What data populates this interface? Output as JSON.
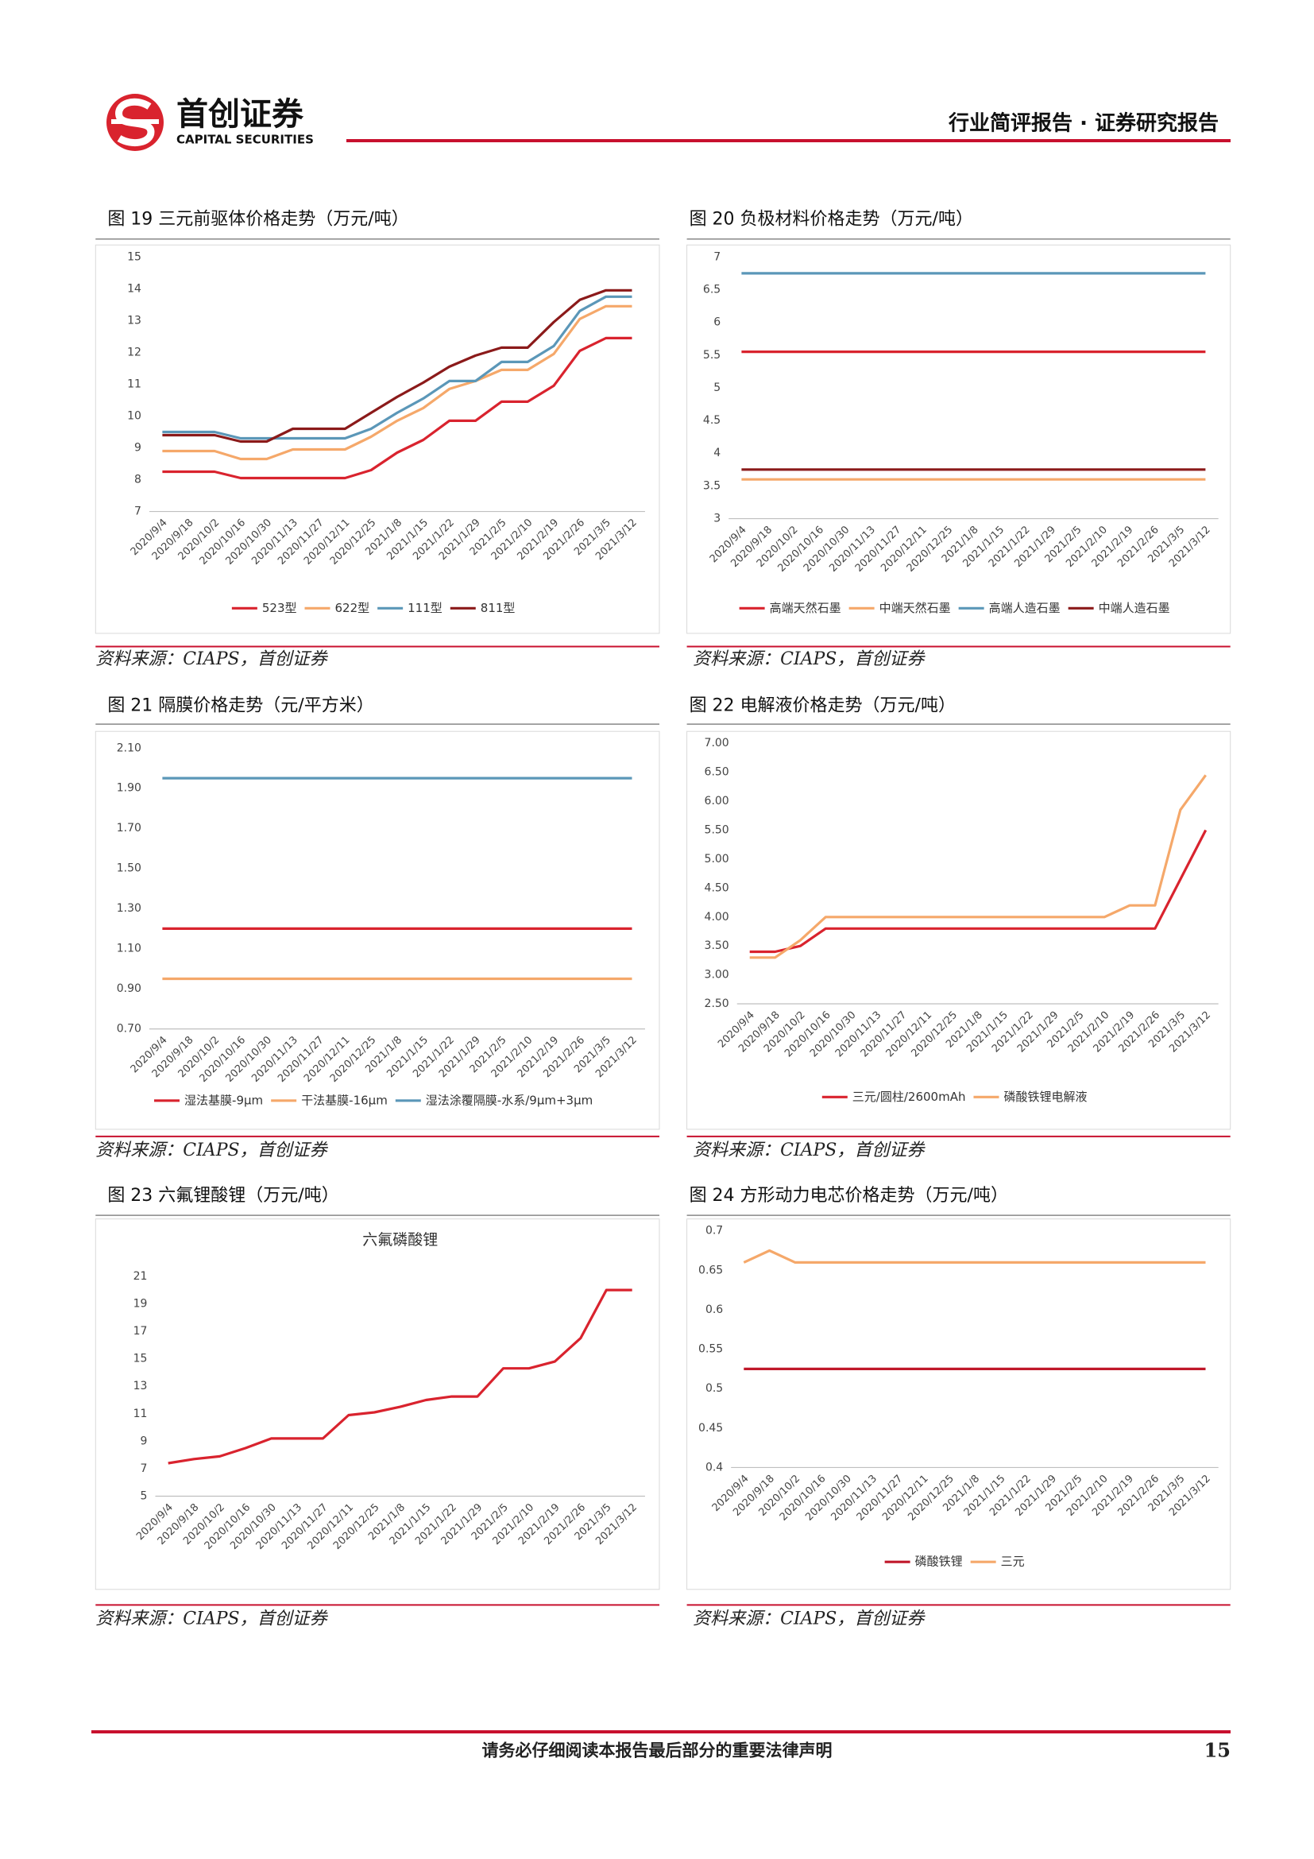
{
  "header": {
    "brand": "首创证券",
    "brand_en": "CAPITAL SECURITIES",
    "report_type": "行业简评报告 · 证券研究报告"
  },
  "chart_data": [
    {
      "type": "line",
      "title": "图 19 三元前驱体价格走势（万元/吨）",
      "source": "资料来源：CIAPS，首创证券",
      "categories": [
        "2020/9/4",
        "2020/9/18",
        "2020/10/2",
        "2020/10/16",
        "2020/10/30",
        "2020/11/13",
        "2020/11/27",
        "2020/12/11",
        "2020/12/25",
        "2021/1/8",
        "2021/1/15",
        "2021/1/22",
        "2021/1/29",
        "2021/2/5",
        "2021/2/10",
        "2021/2/19",
        "2021/2/26",
        "2021/3/5",
        "2021/3/12"
      ],
      "series": [
        {
          "name": "523型",
          "color": "#d9232e",
          "values": [
            8.25,
            8.25,
            8.25,
            8.05,
            8.05,
            8.05,
            8.05,
            8.05,
            8.3,
            8.85,
            9.25,
            9.85,
            9.85,
            10.45,
            10.45,
            10.95,
            12.05,
            12.45,
            12.45
          ]
        },
        {
          "name": "622型",
          "color": "#f5a86a",
          "values": [
            8.9,
            8.9,
            8.9,
            8.65,
            8.65,
            8.95,
            8.95,
            8.95,
            9.35,
            9.85,
            10.25,
            10.85,
            11.1,
            11.45,
            11.45,
            11.95,
            13.05,
            13.45,
            13.45
          ]
        },
        {
          "name": "111型",
          "color": "#5b97b8",
          "values": [
            9.5,
            9.5,
            9.5,
            9.3,
            9.3,
            9.3,
            9.3,
            9.3,
            9.6,
            10.1,
            10.55,
            11.1,
            11.1,
            11.7,
            11.7,
            12.2,
            13.3,
            13.75,
            13.75
          ]
        },
        {
          "name": "811型",
          "color": "#8b1a1a",
          "values": [
            9.4,
            9.4,
            9.4,
            9.2,
            9.2,
            9.6,
            9.6,
            9.6,
            10.1,
            10.6,
            11.05,
            11.55,
            11.9,
            12.15,
            12.15,
            12.95,
            13.65,
            13.95,
            13.95
          ]
        }
      ],
      "ylim": [
        7,
        15
      ],
      "yticks": [
        7,
        8,
        9,
        10,
        11,
        12,
        13,
        14,
        15
      ],
      "grid": false,
      "legend": "bottom"
    },
    {
      "type": "line",
      "title": "图 20 负极材料价格走势（万元/吨）",
      "source": "资料来源：CIAPS，首创证券",
      "categories": [
        "2020/9/4",
        "2020/9/18",
        "2020/10/2",
        "2020/10/16",
        "2020/10/30",
        "2020/11/13",
        "2020/11/27",
        "2020/12/11",
        "2020/12/25",
        "2021/1/8",
        "2021/1/15",
        "2021/1/22",
        "2021/1/29",
        "2021/2/5",
        "2021/2/10",
        "2021/2/19",
        "2021/2/26",
        "2021/3/5",
        "2021/3/12"
      ],
      "series": [
        {
          "name": "高端天然石墨",
          "color": "#d9232e",
          "values": [
            5.55,
            5.55,
            5.55,
            5.55,
            5.55,
            5.55,
            5.55,
            5.55,
            5.55,
            5.55,
            5.55,
            5.55,
            5.55,
            5.55,
            5.55,
            5.55,
            5.55,
            5.55,
            5.55
          ]
        },
        {
          "name": "中端天然石墨",
          "color": "#f5a86a",
          "values": [
            3.6,
            3.6,
            3.6,
            3.6,
            3.6,
            3.6,
            3.6,
            3.6,
            3.6,
            3.6,
            3.6,
            3.6,
            3.6,
            3.6,
            3.6,
            3.6,
            3.6,
            3.6,
            3.6
          ]
        },
        {
          "name": "高端人造石墨",
          "color": "#5b97b8",
          "values": [
            6.75,
            6.75,
            6.75,
            6.75,
            6.75,
            6.75,
            6.75,
            6.75,
            6.75,
            6.75,
            6.75,
            6.75,
            6.75,
            6.75,
            6.75,
            6.75,
            6.75,
            6.75,
            6.75
          ]
        },
        {
          "name": "中端人造石墨",
          "color": "#8b1a1a",
          "values": [
            3.75,
            3.75,
            3.75,
            3.75,
            3.75,
            3.75,
            3.75,
            3.75,
            3.75,
            3.75,
            3.75,
            3.75,
            3.75,
            3.75,
            3.75,
            3.75,
            3.75,
            3.75,
            3.75
          ]
        }
      ],
      "ylim": [
        3,
        7
      ],
      "yticks": [
        3,
        3.5,
        4,
        4.5,
        5,
        5.5,
        6,
        6.5,
        7
      ],
      "grid": false,
      "legend": "bottom"
    },
    {
      "type": "line",
      "title": "图 21 隔膜价格走势（元/平方米）",
      "source": "资料来源：CIAPS，首创证券",
      "categories": [
        "2020/9/4",
        "2020/9/18",
        "2020/10/2",
        "2020/10/16",
        "2020/10/30",
        "2020/11/13",
        "2020/11/27",
        "2020/12/11",
        "2020/12/25",
        "2021/1/8",
        "2021/1/15",
        "2021/1/22",
        "2021/1/29",
        "2021/2/5",
        "2021/2/10",
        "2021/2/19",
        "2021/2/26",
        "2021/3/5",
        "2021/3/12"
      ],
      "series": [
        {
          "name": "湿法基膜-9μm",
          "color": "#d9232e",
          "values": [
            1.2,
            1.2,
            1.2,
            1.2,
            1.2,
            1.2,
            1.2,
            1.2,
            1.2,
            1.2,
            1.2,
            1.2,
            1.2,
            1.2,
            1.2,
            1.2,
            1.2,
            1.2,
            1.2
          ]
        },
        {
          "name": "干法基膜-16μm",
          "color": "#f5a86a",
          "values": [
            0.95,
            0.95,
            0.95,
            0.95,
            0.95,
            0.95,
            0.95,
            0.95,
            0.95,
            0.95,
            0.95,
            0.95,
            0.95,
            0.95,
            0.95,
            0.95,
            0.95,
            0.95,
            0.95
          ]
        },
        {
          "name": "湿法涂覆隔膜-水系/9μm+3μm",
          "color": "#5b97b8",
          "values": [
            1.95,
            1.95,
            1.95,
            1.95,
            1.95,
            1.95,
            1.95,
            1.95,
            1.95,
            1.95,
            1.95,
            1.95,
            1.95,
            1.95,
            1.95,
            1.95,
            1.95,
            1.95,
            1.95
          ]
        }
      ],
      "ylim": [
        0.7,
        2.1
      ],
      "yticks": [
        {
          "value": 0.7,
          "label": "0.70"
        },
        {
          "value": 0.9,
          "label": "0.90"
        },
        {
          "value": 1.1,
          "label": "1.10"
        },
        {
          "value": 1.3,
          "label": "1.30"
        },
        {
          "value": 1.5,
          "label": "1.50"
        },
        {
          "value": 1.7,
          "label": "1.70"
        },
        {
          "value": 1.9,
          "label": "1.90"
        },
        {
          "value": 2.1,
          "label": "2.10"
        }
      ],
      "grid": false,
      "legend": "bottom"
    },
    {
      "type": "line",
      "title": "图 22 电解液价格走势（万元/吨）",
      "source": "资料来源：CIAPS，首创证券",
      "categories": [
        "2020/9/4",
        "2020/9/18",
        "2020/10/2",
        "2020/10/16",
        "2020/10/30",
        "2020/11/13",
        "2020/11/27",
        "2020/12/11",
        "2020/12/25",
        "2021/1/8",
        "2021/1/15",
        "2021/1/22",
        "2021/1/29",
        "2021/2/5",
        "2021/2/10",
        "2021/2/19",
        "2021/2/26",
        "2021/3/5",
        "2021/3/12"
      ],
      "series": [
        {
          "name": "三元/圆柱/2600mAh",
          "color": "#d9232e",
          "values": [
            3.4,
            3.4,
            3.5,
            3.8,
            3.8,
            3.8,
            3.8,
            3.8,
            3.8,
            3.8,
            3.8,
            3.8,
            3.8,
            3.8,
            3.8,
            3.8,
            3.8,
            4.65,
            5.5
          ]
        },
        {
          "name": "磷酸铁锂电解液",
          "color": "#f5a86a",
          "values": [
            3.3,
            3.3,
            3.6,
            4.0,
            4.0,
            4.0,
            4.0,
            4.0,
            4.0,
            4.0,
            4.0,
            4.0,
            4.0,
            4.0,
            4.0,
            4.2,
            4.2,
            5.85,
            6.45
          ]
        }
      ],
      "ylim": [
        2.5,
        7
      ],
      "yticks": [
        {
          "value": 2.5,
          "label": "2.50"
        },
        {
          "value": 3,
          "label": "3.00"
        },
        {
          "value": 3.5,
          "label": "3.50"
        },
        {
          "value": 4,
          "label": "4.00"
        },
        {
          "value": 4.5,
          "label": "4.50"
        },
        {
          "value": 5,
          "label": "5.00"
        },
        {
          "value": 5.5,
          "label": "5.50"
        },
        {
          "value": 6,
          "label": "6.00"
        },
        {
          "value": 6.5,
          "label": "6.50"
        },
        {
          "value": 7,
          "label": "7.00"
        }
      ],
      "grid": false,
      "legend": "bottom"
    },
    {
      "type": "line",
      "title": "图 23 六氟锂酸锂（万元/吨）",
      "subtitle": "六氟磷酸锂",
      "source": "资料来源：CIAPS，首创证券",
      "categories": [
        "2020/9/4",
        "2020/9/18",
        "2020/10/2",
        "2020/10/16",
        "2020/10/30",
        "2020/11/13",
        "2020/11/27",
        "2020/12/11",
        "2020/12/25",
        "2021/1/8",
        "2021/1/15",
        "2021/1/22",
        "2021/1/29",
        "2021/2/5",
        "2021/2/10",
        "2021/2/19",
        "2021/2/26",
        "2021/3/5",
        "2021/3/12"
      ],
      "values": [
        7.4,
        7.7,
        7.9,
        8.5,
        9.2,
        9.2,
        9.2,
        10.9,
        11.1,
        11.5,
        12.0,
        12.25,
        12.25,
        14.3,
        14.3,
        14.8,
        16.5,
        20.0,
        20.0
      ],
      "color": "#d9232e",
      "ylim": [
        5,
        21
      ],
      "yticks": [
        5,
        7,
        9,
        11,
        13,
        15,
        17,
        19,
        21
      ],
      "grid": false
    },
    {
      "type": "line",
      "title": "图 24 方形动力电芯价格走势（万元/吨）",
      "source": "资料来源：CIAPS，首创证券",
      "categories": [
        "2020/9/4",
        "2020/9/18",
        "2020/10/2",
        "2020/10/16",
        "2020/10/30",
        "2020/11/13",
        "2020/11/27",
        "2020/12/11",
        "2020/12/25",
        "2021/1/8",
        "2021/1/15",
        "2021/1/22",
        "2021/1/29",
        "2021/2/5",
        "2021/2/10",
        "2021/2/19",
        "2021/2/26",
        "2021/3/5",
        "2021/3/12"
      ],
      "series": [
        {
          "name": "磷酸铁锂",
          "color": "#c0182a",
          "values": [
            0.525,
            0.525,
            0.525,
            0.525,
            0.525,
            0.525,
            0.525,
            0.525,
            0.525,
            0.525,
            0.525,
            0.525,
            0.525,
            0.525,
            0.525,
            0.525,
            0.525,
            0.525,
            0.525
          ]
        },
        {
          "name": "三元",
          "color": "#f5a86a",
          "values": [
            0.66,
            0.675,
            0.66,
            0.66,
            0.66,
            0.66,
            0.66,
            0.66,
            0.66,
            0.66,
            0.66,
            0.66,
            0.66,
            0.66,
            0.66,
            0.66,
            0.66,
            0.66,
            0.66
          ]
        }
      ],
      "ylim": [
        0.4,
        0.7
      ],
      "yticks": [
        0.4,
        0.45,
        0.5,
        0.55,
        0.6,
        0.65,
        0.7
      ],
      "grid": false,
      "legend": "bottom"
    }
  ],
  "footer": {
    "disclaimer": "请务必仔细阅读本报告最后部分的重要法律声明",
    "page": 15
  }
}
